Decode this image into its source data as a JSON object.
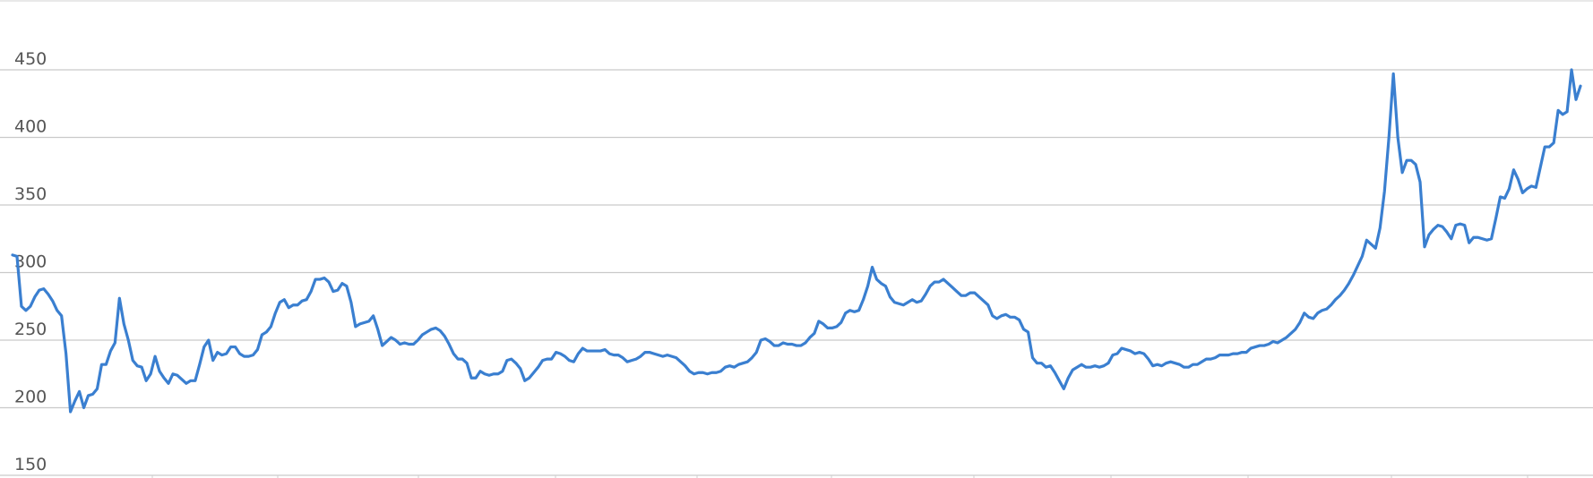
{
  "chart_data": {
    "type": "line",
    "title": "",
    "xlabel": "",
    "ylabel": "",
    "ylim": [
      150,
      450
    ],
    "y_ticks": [
      150,
      200,
      250,
      300,
      350,
      400,
      450
    ],
    "x_tick_count": 11,
    "grid": "horizontal",
    "legend": "none",
    "line_color": "#3a7fd0",
    "series": [
      {
        "values": [
          313,
          312,
          275,
          272,
          275,
          282,
          287,
          288,
          284,
          279,
          272,
          268,
          240,
          197,
          205,
          212,
          200,
          209,
          210,
          214,
          232,
          232,
          242,
          248,
          281,
          262,
          250,
          235,
          231,
          230,
          220,
          225,
          238,
          227,
          222,
          218,
          225,
          224,
          221,
          218,
          220,
          220,
          232,
          245,
          250,
          235,
          241,
          239,
          240,
          245,
          245,
          240,
          238,
          238,
          239,
          243,
          254,
          256,
          260,
          270,
          278,
          280,
          274,
          276,
          276,
          279,
          280,
          286,
          295,
          295,
          296,
          293,
          286,
          287,
          292,
          290,
          278,
          260,
          262,
          263,
          264,
          268,
          258,
          246,
          249,
          252,
          250,
          247,
          248,
          247,
          247,
          250,
          254,
          256,
          258,
          259,
          257,
          253,
          247,
          240,
          236,
          236,
          233,
          222,
          222,
          227,
          225,
          224,
          225,
          225,
          227,
          235,
          236,
          233,
          229,
          220,
          222,
          226,
          230,
          235,
          236,
          236,
          241,
          240,
          238,
          235,
          234,
          240,
          244,
          242,
          242,
          242,
          242,
          243,
          240,
          239,
          239,
          237,
          234,
          235,
          236,
          238,
          241,
          241,
          240,
          239,
          238,
          239,
          238,
          237,
          234,
          231,
          227,
          225,
          226,
          226,
          225,
          226,
          226,
          227,
          230,
          231,
          230,
          232,
          233,
          234,
          237,
          241,
          250,
          251,
          249,
          246,
          246,
          248,
          247,
          247,
          246,
          246,
          248,
          252,
          255,
          264,
          262,
          259,
          259,
          260,
          263,
          270,
          272,
          271,
          272,
          280,
          290,
          304,
          295,
          292,
          290,
          282,
          278,
          277,
          276,
          278,
          280,
          278,
          279,
          284,
          290,
          293,
          293,
          295,
          292,
          289,
          286,
          283,
          283,
          285,
          285,
          282,
          279,
          276,
          268,
          266,
          268,
          269,
          267,
          267,
          265,
          258,
          256,
          237,
          233,
          233,
          230,
          231,
          226,
          220,
          214,
          222,
          228,
          230,
          232,
          230,
          230,
          231,
          230,
          231,
          233,
          239,
          240,
          244,
          243,
          242,
          240,
          241,
          240,
          236,
          231,
          232,
          231,
          233,
          234,
          233,
          232,
          230,
          230,
          232,
          232,
          234,
          236,
          236,
          237,
          239,
          239,
          239,
          240,
          240,
          241,
          241,
          244,
          245,
          246,
          246,
          247,
          249,
          248,
          250,
          252,
          255,
          258,
          263,
          270,
          267,
          266,
          270,
          272,
          273,
          276,
          280,
          283,
          287,
          292,
          298,
          305,
          312,
          324,
          321,
          318,
          333,
          360,
          400,
          447,
          400,
          374,
          383,
          383,
          380,
          367,
          319,
          328,
          332,
          335,
          334,
          330,
          325,
          335,
          336,
          335,
          322,
          326,
          326,
          325,
          324,
          325,
          340,
          356,
          355,
          362,
          376,
          369,
          359,
          362,
          364,
          363,
          378,
          393,
          393,
          396,
          420,
          417,
          419,
          450,
          428,
          438
        ]
      }
    ]
  }
}
